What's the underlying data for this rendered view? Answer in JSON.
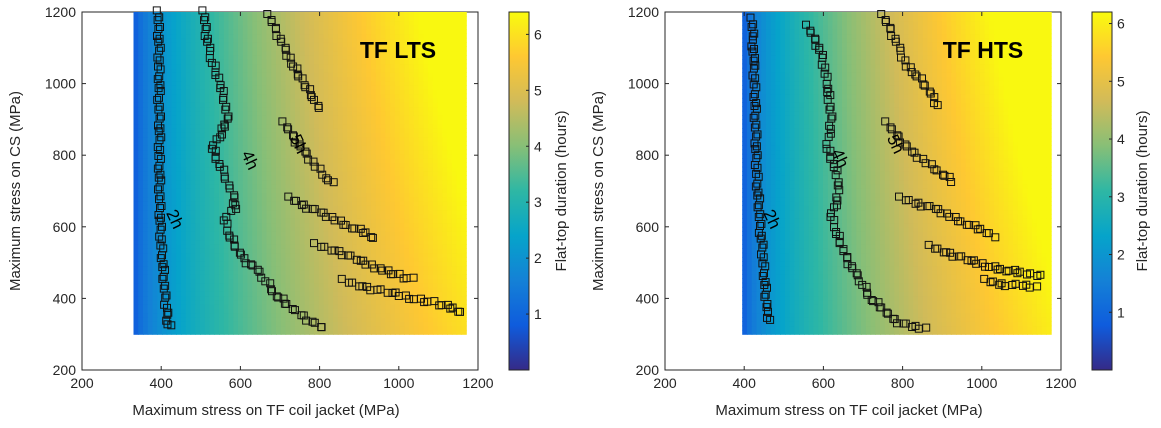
{
  "chart_data": [
    {
      "type": "scatter",
      "title": "TF LTS",
      "xlabel": "Maximum stress on TF coil jacket (MPa)",
      "ylabel": "Maximum stress on CS (MPa)",
      "xlim": [
        200,
        1200
      ],
      "ylim": [
        200,
        1200
      ],
      "xticks": [
        "200",
        "400",
        "600",
        "800",
        "1000",
        "1200"
      ],
      "yticks": [
        "200",
        "400",
        "600",
        "800",
        "1000",
        "1200"
      ],
      "colorbar": {
        "label": "Flat-top duration (hours)",
        "range": [
          0,
          6.4
        ],
        "ticks": [
          "1",
          "2",
          "3",
          "4",
          "5",
          "6"
        ],
        "colormap": "parula"
      },
      "field": {
        "xrange": [
          330,
          1170
        ],
        "yrange": [
          300,
          1200
        ]
      },
      "contours": [
        {
          "label": "2h",
          "label_x": 432,
          "label_y": 620,
          "points": [
            [
              393,
              1200
            ],
            [
              393,
              1150
            ],
            [
              395,
              1100
            ],
            [
              394,
              1050
            ],
            [
              396,
              1000
            ],
            [
              394,
              950
            ],
            [
              396,
              900
            ],
            [
              396,
              850
            ],
            [
              395,
              800
            ],
            [
              396,
              750
            ],
            [
              396,
              700
            ],
            [
              397,
              650
            ],
            [
              398,
              600
            ],
            [
              400,
              550
            ],
            [
              404,
              500
            ],
            [
              407,
              450
            ],
            [
              410,
              400
            ],
            [
              414,
              360
            ],
            [
              418,
              330
            ],
            [
              425,
              315
            ]
          ]
        },
        {
          "label": "4h",
          "label_x": 622,
          "label_y": 785,
          "points": [
            [
              508,
              1200
            ],
            [
              512,
              1150
            ],
            [
              520,
              1100
            ],
            [
              530,
              1060
            ],
            [
              548,
              1000
            ],
            [
              560,
              950
            ],
            [
              568,
              900
            ],
            [
              545,
              850
            ],
            [
              530,
              820
            ],
            [
              545,
              780
            ],
            [
              565,
              730
            ],
            [
              585,
              680
            ],
            [
              585,
              650
            ],
            [
              560,
              620
            ],
            [
              570,
              580
            ],
            [
              590,
              540
            ],
            [
              610,
              510
            ],
            [
              640,
              480
            ],
            [
              665,
              450
            ],
            [
              690,
              410
            ],
            [
              720,
              380
            ],
            [
              760,
              350
            ],
            [
              800,
              320
            ],
            [
              810,
              310
            ]
          ]
        },
        {
          "label": "5h",
          "label_x": 745,
          "label_y": 830,
          "points": [
            [
              672,
              1190
            ],
            [
              690,
              1150
            ],
            [
              710,
              1100
            ],
            [
              735,
              1050
            ],
            [
              760,
              1000
            ],
            [
              790,
              950
            ],
            [
              805,
              920
            ]
          ]
        },
        {
          "label": "",
          "label_x": 0,
          "label_y": 0,
          "points": [
            [
              710,
              890
            ],
            [
              735,
              850
            ],
            [
              760,
              810
            ],
            [
              790,
              770
            ],
            [
              815,
              740
            ],
            [
              840,
              710
            ]
          ]
        },
        {
          "label": "",
          "label_x": 0,
          "label_y": 0,
          "points": [
            [
              725,
              680
            ],
            [
              760,
              660
            ],
            [
              800,
              640
            ],
            [
              840,
              620
            ],
            [
              880,
              600
            ],
            [
              920,
              580
            ],
            [
              945,
              560
            ]
          ]
        },
        {
          "label": "",
          "label_x": 0,
          "label_y": 0,
          "points": [
            [
              790,
              550
            ],
            [
              850,
              530
            ],
            [
              900,
              505
            ],
            [
              960,
              480
            ],
            [
              1010,
              460
            ],
            [
              1045,
              450
            ]
          ]
        },
        {
          "label": "",
          "label_x": 0,
          "label_y": 0,
          "points": [
            [
              860,
              450
            ],
            [
              920,
              430
            ],
            [
              980,
              415
            ],
            [
              1040,
              400
            ],
            [
              1100,
              385
            ],
            [
              1140,
              370
            ],
            [
              1165,
              355
            ]
          ]
        }
      ]
    },
    {
      "type": "scatter",
      "title": "TF HTS",
      "xlabel": "Maximum stress on TF coil jacket (MPa)",
      "ylabel": "Maximum stress on CS (MPa)",
      "xlim": [
        200,
        1200
      ],
      "ylim": [
        200,
        1200
      ],
      "xticks": [
        "200",
        "400",
        "600",
        "800",
        "1000",
        "1200"
      ],
      "yticks": [
        "200",
        "400",
        "600",
        "800",
        "1000",
        "1200"
      ],
      "colorbar": {
        "label": "Flat-top duration (hours)",
        "range": [
          0,
          6.2
        ],
        "ticks": [
          "1",
          "2",
          "3",
          "4",
          "5",
          "6"
        ],
        "colormap": "parula"
      },
      "field": {
        "xrange": [
          395,
          1170
        ],
        "yrange": [
          300,
          1200
        ]
      },
      "contours": [
        {
          "label": "2h",
          "label_x": 468,
          "label_y": 620,
          "points": [
            [
              420,
              1180
            ],
            [
              422,
              1120
            ],
            [
              424,
              1050
            ],
            [
              426,
              1000
            ],
            [
              428,
              950
            ],
            [
              428,
              900
            ],
            [
              430,
              850
            ],
            [
              430,
              800
            ],
            [
              432,
              750
            ],
            [
              434,
              700
            ],
            [
              438,
              650
            ],
            [
              440,
              600
            ],
            [
              445,
              550
            ],
            [
              448,
              500
            ],
            [
              452,
              450
            ],
            [
              455,
              400
            ],
            [
              460,
              360
            ],
            [
              465,
              330
            ]
          ]
        },
        {
          "label": "4h",
          "label_x": 640,
          "label_y": 790,
          "points": [
            [
              560,
              1160
            ],
            [
              580,
              1120
            ],
            [
              595,
              1080
            ],
            [
              605,
              1030
            ],
            [
              610,
              990
            ],
            [
              615,
              950
            ],
            [
              620,
              900
            ],
            [
              615,
              860
            ],
            [
              610,
              820
            ],
            [
              625,
              780
            ],
            [
              635,
              740
            ],
            [
              640,
              700
            ],
            [
              630,
              660
            ],
            [
              620,
              630
            ],
            [
              630,
              590
            ],
            [
              645,
              550
            ],
            [
              660,
              510
            ],
            [
              680,
              470
            ],
            [
              700,
              440
            ],
            [
              720,
              400
            ],
            [
              750,
              370
            ],
            [
              780,
              340
            ],
            [
              820,
              320
            ],
            [
              870,
              315
            ]
          ]
        },
        {
          "label": "5h",
          "label_x": 780,
          "label_y": 830,
          "points": [
            [
              750,
              1190
            ],
            [
              770,
              1150
            ],
            [
              790,
              1100
            ],
            [
              810,
              1050
            ],
            [
              830,
              1030
            ],
            [
              860,
              990
            ],
            [
              880,
              960
            ],
            [
              890,
              930
            ]
          ]
        },
        {
          "label": "",
          "label_x": 0,
          "label_y": 0,
          "points": [
            [
              760,
              890
            ],
            [
              790,
              850
            ],
            [
              820,
              810
            ],
            [
              860,
              780
            ],
            [
              900,
              750
            ],
            [
              930,
              720
            ]
          ]
        },
        {
          "label": "",
          "label_x": 0,
          "label_y": 0,
          "points": [
            [
              795,
              680
            ],
            [
              840,
              665
            ],
            [
              880,
              650
            ],
            [
              920,
              630
            ],
            [
              960,
              610
            ],
            [
              1000,
              590
            ],
            [
              1040,
              570
            ]
          ]
        },
        {
          "label": "",
          "label_x": 0,
          "label_y": 0,
          "points": [
            [
              870,
              545
            ],
            [
              920,
              525
            ],
            [
              970,
              505
            ],
            [
              1020,
              490
            ],
            [
              1060,
              480
            ],
            [
              1100,
              470
            ],
            [
              1160,
              465
            ]
          ]
        },
        {
          "label": "",
          "label_x": 0,
          "label_y": 0,
          "points": [
            [
              1010,
              450
            ],
            [
              1050,
              440
            ],
            [
              1100,
              435
            ],
            [
              1150,
              430
            ]
          ]
        }
      ]
    }
  ]
}
